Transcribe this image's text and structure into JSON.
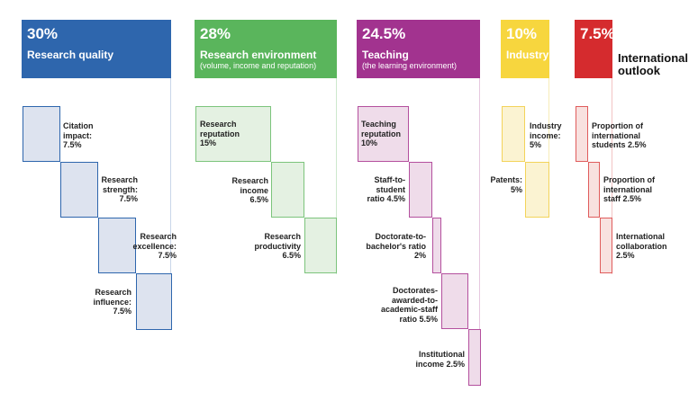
{
  "colors": {
    "research_quality": "#2e66ad",
    "research_environment": "#5ab55c",
    "teaching": "#a2338f",
    "industry": "#f7d63e",
    "international": "#d52b2e"
  },
  "pillars": {
    "research_quality": {
      "percent": "30%",
      "title": "Research quality",
      "metrics": [
        {
          "label": "Citation\nimpact:\n7.5%"
        },
        {
          "label": "Research\nstrength:\n7.5%"
        },
        {
          "label": "Research\nexcellence:\n7.5%"
        },
        {
          "label": "Research\ninfluence:\n7.5%"
        }
      ]
    },
    "research_environment": {
      "percent": "28%",
      "title": "Research environment",
      "subtitle": "(volume, income and reputation)",
      "metrics": [
        {
          "label": "Research\nreputation\n15%"
        },
        {
          "label": "Research\nincome\n6.5%"
        },
        {
          "label": "Research\nproductivity\n6.5%"
        }
      ]
    },
    "teaching": {
      "percent": "24.5%",
      "title": "Teaching",
      "subtitle": "(the learning environment)",
      "metrics": [
        {
          "label": "Teaching\nreputation\n10%"
        },
        {
          "label": "Staff-to-\nstudent\nratio 4.5%"
        },
        {
          "label": "Doctorate-to-\nbachelor's ratio\n2%"
        },
        {
          "label": "Doctorates-\nawarded-to-\nacademic-staff\nratio 5.5%"
        },
        {
          "label": "Institutional\nincome 2.5%"
        }
      ]
    },
    "industry": {
      "percent": "10%",
      "title": "Industry",
      "metrics": [
        {
          "label": "Industry\nincome:\n5%"
        },
        {
          "label": "Patents:\n5%"
        }
      ]
    },
    "international": {
      "percent": "7.5%",
      "title": "International\noutlook",
      "metrics": [
        {
          "label": "Proportion of\ninternational\nstudents 2.5%"
        },
        {
          "label": "Proportion of\ninternational\nstaff 2.5%"
        },
        {
          "label": "International\ncollaboration\n2.5%"
        }
      ]
    }
  }
}
